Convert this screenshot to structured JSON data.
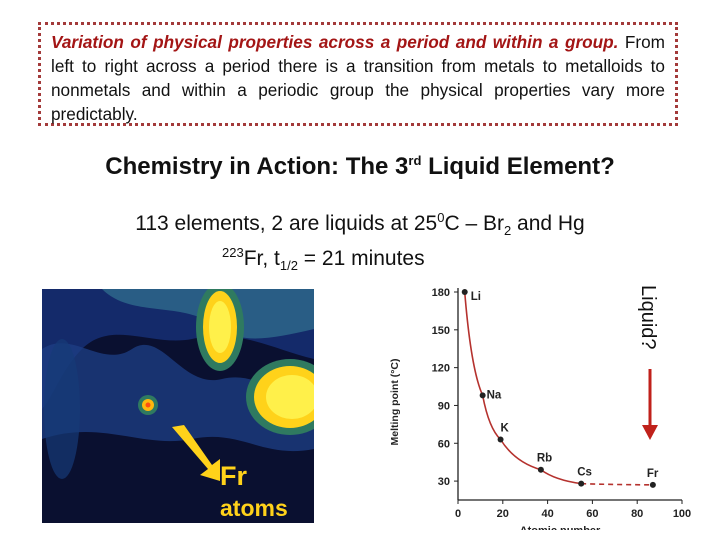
{
  "textbox": {
    "lead": "Variation of physical properties across a period and within a group.",
    "body": "From left to right across a period there is a transition from metals to metalloids to nonmetals and within a periodic group the physical properties vary more predictably."
  },
  "heading": {
    "main": "Chemistry in Action: The 3",
    "sup": "rd",
    "rest": " Liquid Element?"
  },
  "fact_line": {
    "a": "113 elements, 2 are liquids at 25",
    "sup": "0",
    "b": "C – Br",
    "sub": "2",
    "c": " and Hg"
  },
  "fr_line": {
    "sup": "223",
    "a": "Fr, t",
    "sub": "1/2",
    "b": " = 21 minutes"
  },
  "photo": {
    "label1": "Fr",
    "label2": "atoms"
  },
  "annotation": "Liquid?",
  "colors": {
    "accent": "#a31515",
    "curve": "#b5322e"
  },
  "chart_data": {
    "type": "line",
    "xlabel": "Atomic number",
    "ylabel": "Melting point (°C)",
    "xlim": [
      0,
      100
    ],
    "ylim": [
      15,
      180
    ],
    "x_ticks": [
      0,
      20,
      40,
      60,
      80,
      100
    ],
    "y_ticks": [
      30,
      60,
      90,
      120,
      150,
      180
    ],
    "points": [
      {
        "label": "Li",
        "x": 3,
        "y": 180
      },
      {
        "label": "Na",
        "x": 11,
        "y": 98
      },
      {
        "label": "K",
        "x": 19,
        "y": 63
      },
      {
        "label": "Rb",
        "x": 37,
        "y": 39
      },
      {
        "label": "Cs",
        "x": 55,
        "y": 28
      },
      {
        "label": "Fr",
        "x": 87,
        "y": 27
      }
    ],
    "extrapolated_after": "Cs"
  }
}
